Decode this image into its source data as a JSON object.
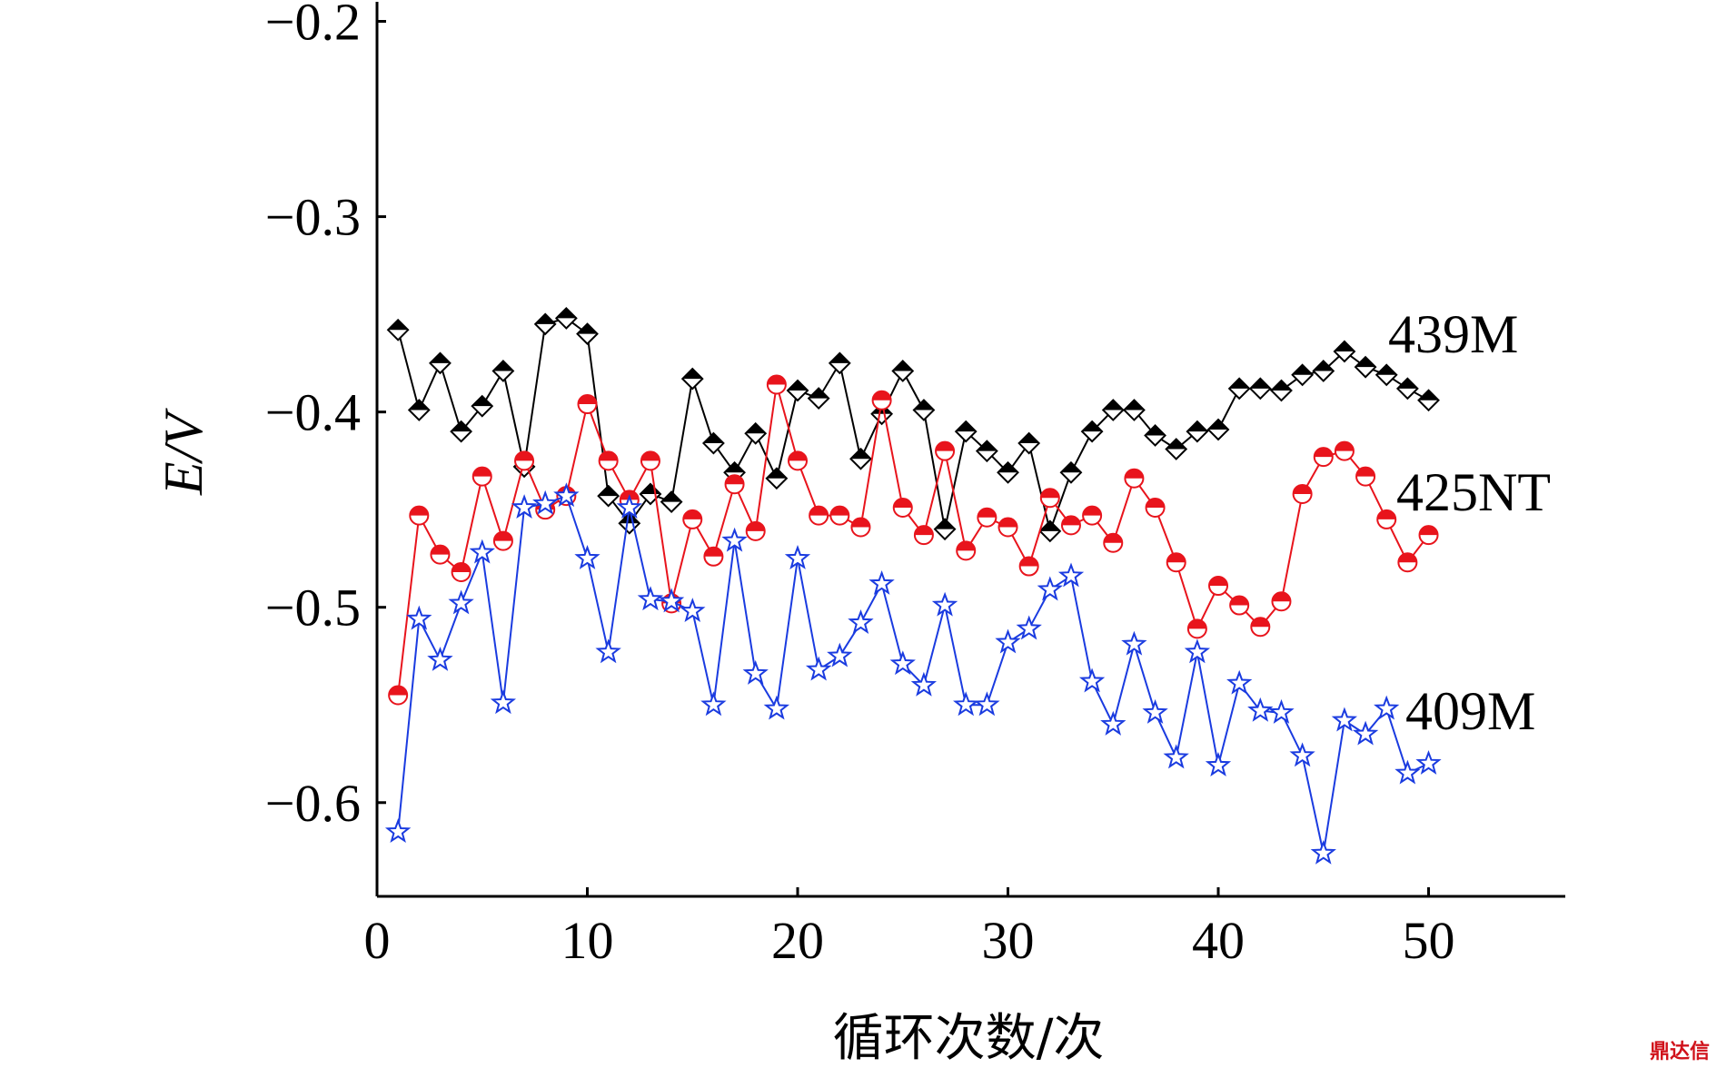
{
  "chart_data": {
    "type": "line",
    "title": "",
    "xlabel": "循环次数/次",
    "ylabel": "E/V",
    "xlim": [
      0,
      56.5
    ],
    "ylim": [
      -0.648,
      -0.19
    ],
    "x_ticks": [
      0,
      10,
      20,
      30,
      40,
      50
    ],
    "x_tick_labels": [
      "0",
      "10",
      "20",
      "30",
      "40",
      "50"
    ],
    "y_ticks": [
      -0.2,
      -0.3,
      -0.4,
      -0.5,
      -0.6
    ],
    "y_tick_labels": [
      "−0.2",
      "−0.3",
      "−0.4",
      "−0.5",
      "−0.6"
    ],
    "grid": false,
    "x": [
      1,
      2,
      3,
      4,
      5,
      6,
      7,
      8,
      9,
      10,
      11,
      12,
      13,
      14,
      15,
      16,
      17,
      18,
      19,
      20,
      21,
      22,
      23,
      24,
      25,
      26,
      27,
      28,
      29,
      30,
      31,
      32,
      33,
      34,
      35,
      36,
      37,
      38,
      39,
      40,
      41,
      42,
      43,
      44,
      45,
      46,
      47,
      48,
      49,
      50
    ],
    "series": [
      {
        "name": "439M",
        "color": "#000000",
        "marker": "diamond",
        "values": [
          -0.358,
          -0.399,
          -0.375,
          -0.41,
          -0.397,
          -0.379,
          -0.428,
          -0.355,
          -0.352,
          -0.36,
          -0.443,
          -0.457,
          -0.442,
          -0.446,
          -0.383,
          -0.416,
          -0.431,
          -0.411,
          -0.434,
          -0.389,
          -0.393,
          -0.375,
          -0.424,
          -0.401,
          -0.379,
          -0.399,
          -0.46,
          -0.41,
          -0.42,
          -0.431,
          -0.416,
          -0.461,
          -0.431,
          -0.41,
          -0.399,
          -0.399,
          -0.412,
          -0.419,
          -0.41,
          -0.409,
          -0.388,
          -0.388,
          -0.389,
          -0.381,
          -0.379,
          -0.369,
          -0.377,
          -0.381,
          -0.388,
          -0.394
        ]
      },
      {
        "name": "425NT",
        "color": "#e8141c",
        "marker": "circle",
        "values": [
          -0.545,
          -0.453,
          -0.473,
          -0.482,
          -0.433,
          -0.466,
          -0.425,
          -0.45,
          -0.443,
          -0.396,
          -0.425,
          -0.445,
          -0.425,
          -0.498,
          -0.455,
          -0.474,
          -0.437,
          -0.461,
          -0.386,
          -0.425,
          -0.453,
          -0.453,
          -0.459,
          -0.394,
          -0.449,
          -0.463,
          -0.42,
          -0.471,
          -0.454,
          -0.459,
          -0.479,
          -0.444,
          -0.458,
          -0.453,
          -0.467,
          -0.434,
          -0.449,
          -0.477,
          -0.511,
          -0.489,
          -0.499,
          -0.51,
          -0.497,
          -0.442,
          -0.423,
          -0.42,
          -0.433,
          -0.455,
          -0.477,
          -0.463
        ]
      },
      {
        "name": "409M",
        "color": "#1a3be0",
        "marker": "star",
        "values": [
          -0.615,
          -0.506,
          -0.527,
          -0.498,
          -0.472,
          -0.549,
          -0.449,
          -0.447,
          -0.443,
          -0.475,
          -0.523,
          -0.449,
          -0.496,
          -0.497,
          -0.502,
          -0.55,
          -0.466,
          -0.534,
          -0.552,
          -0.475,
          -0.532,
          -0.525,
          -0.508,
          -0.488,
          -0.529,
          -0.54,
          -0.499,
          -0.55,
          -0.55,
          -0.518,
          -0.511,
          -0.491,
          -0.484,
          -0.538,
          -0.56,
          -0.519,
          -0.554,
          -0.577,
          -0.523,
          -0.581,
          -0.539,
          -0.553,
          -0.554,
          -0.576,
          -0.626,
          -0.558,
          -0.565,
          -0.552,
          -0.585,
          -0.58
        ]
      }
    ],
    "annotations": [
      "439M",
      "425NT",
      "409M"
    ]
  },
  "watermark": "鼎达信"
}
